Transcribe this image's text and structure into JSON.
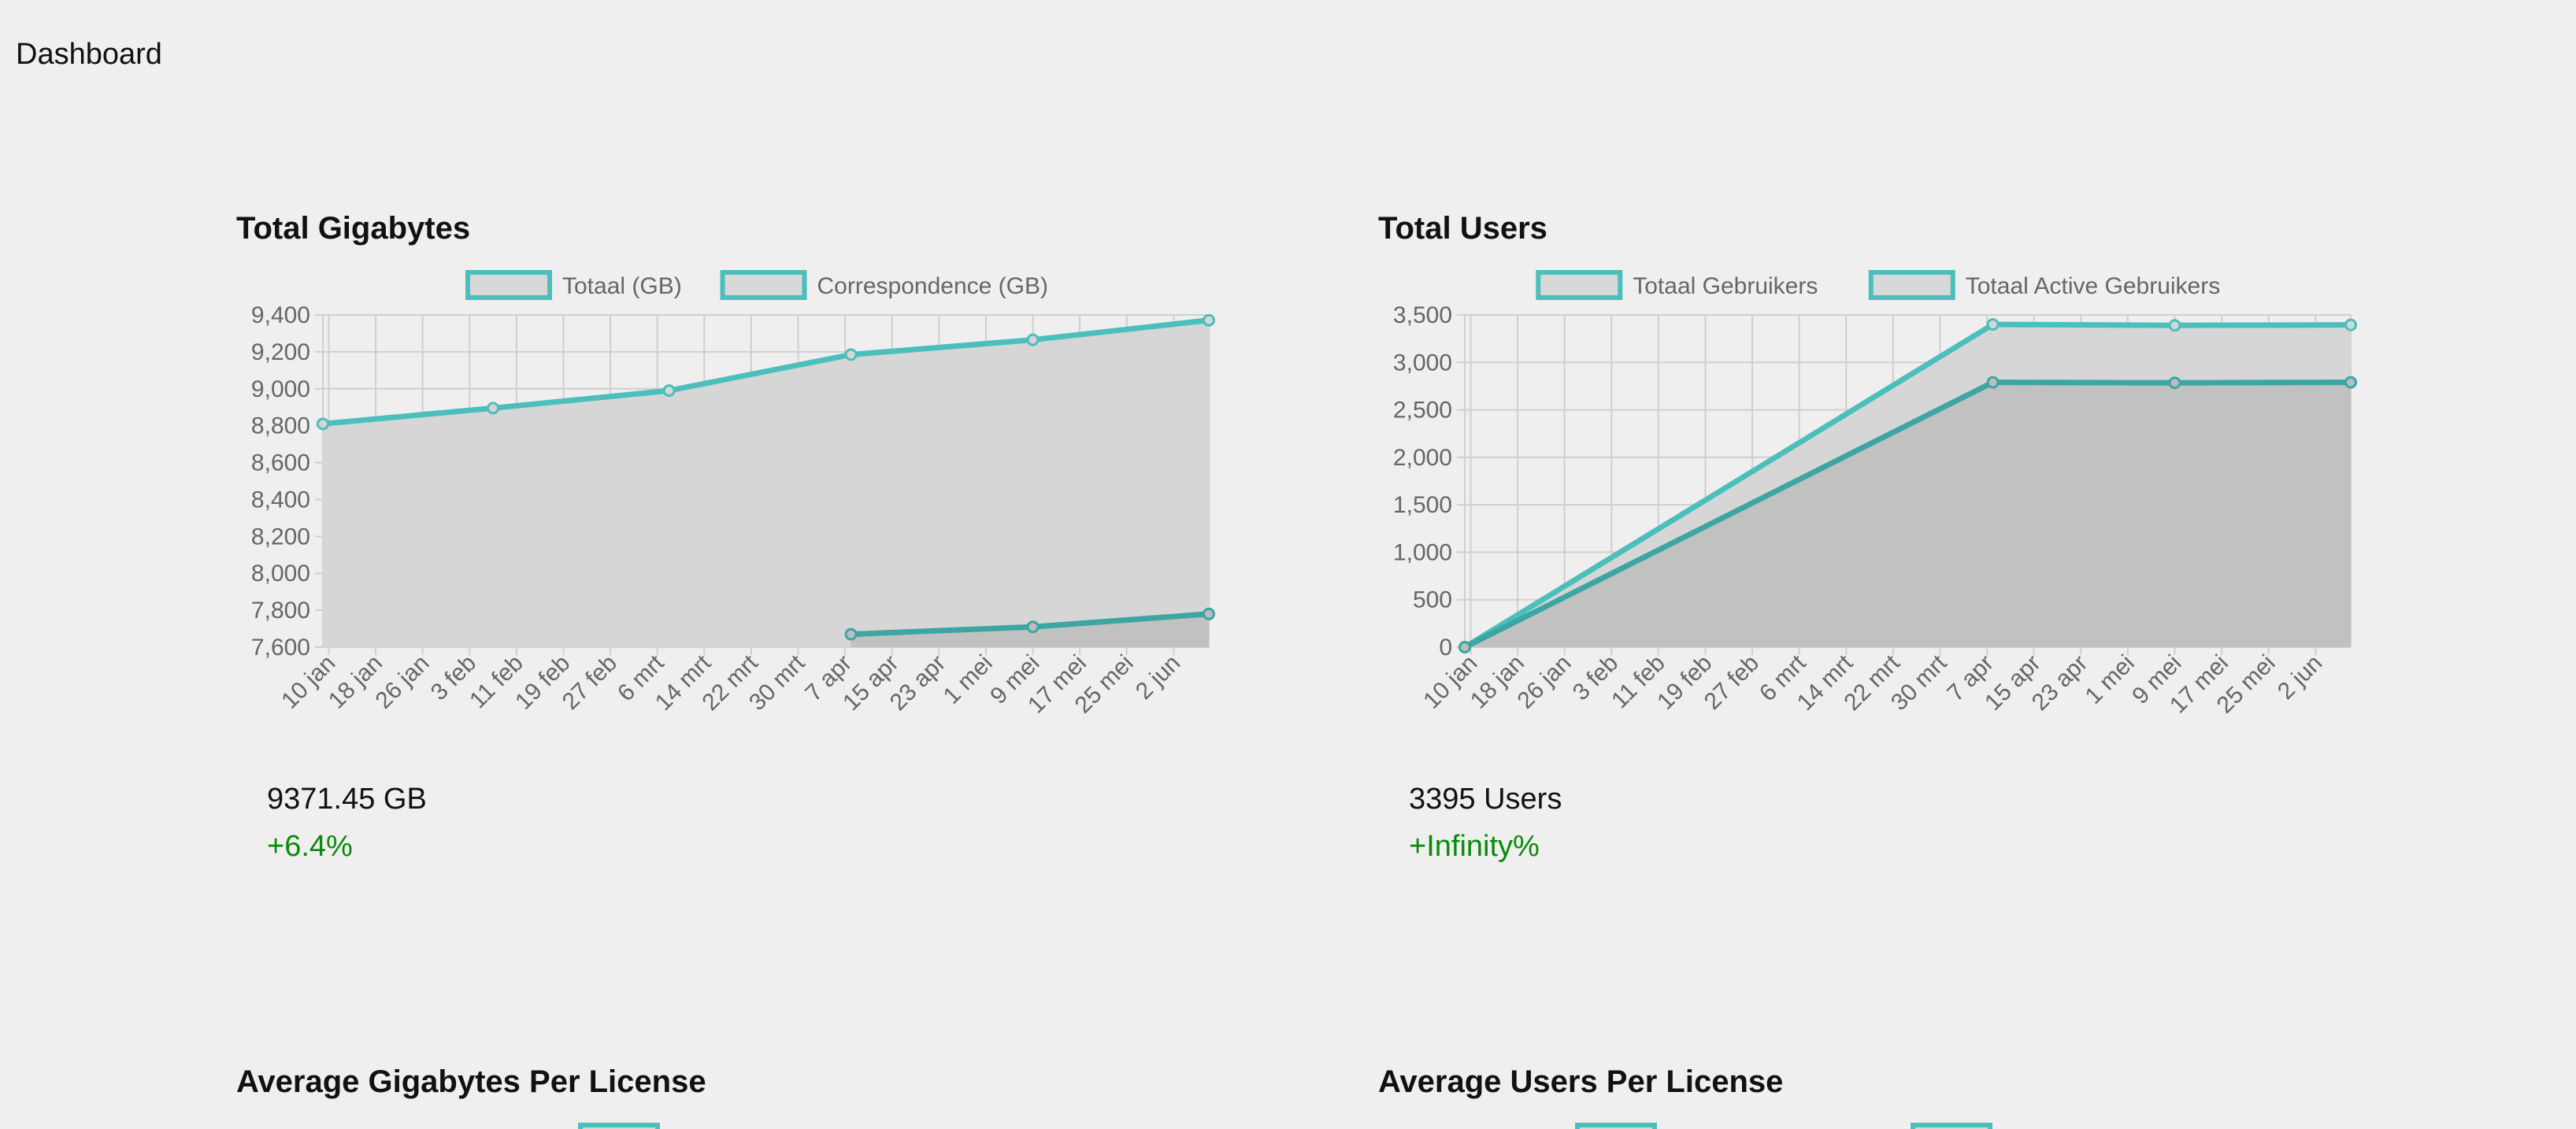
{
  "page": {
    "title": "Dashboard"
  },
  "colors": {
    "line_primary": "#4bbfbb",
    "line_secondary": "#3ba6a2",
    "fill_primary": "#d6d6d6",
    "fill_secondary": "#bdbdbd",
    "legend_box_fill": "#d8d8d8",
    "grid": "#cfcfcf",
    "positive": "#0a8a0a"
  },
  "panels": {
    "gigabytes": {
      "title": "Total Gigabytes",
      "stat_value": "9371.45 GB",
      "stat_change": "+6.4%"
    },
    "users": {
      "title": "Total Users",
      "stat_value": "3395 Users",
      "stat_change": "+Infinity%"
    },
    "avg_gigabytes": {
      "title": "Average Gigabytes Per License"
    },
    "avg_users": {
      "title": "Average Users Per License"
    }
  },
  "chart_data": [
    {
      "type": "area",
      "title": "Total Gigabytes",
      "x_ticks": [
        "10 jan",
        "18 jan",
        "26 jan",
        "3 feb",
        "11 feb",
        "19 feb",
        "27 feb",
        "6 mrt",
        "14 mrt",
        "22 mrt",
        "30 mrt",
        "7 apr",
        "15 apr",
        "23 apr",
        "1 mei",
        "9 mei",
        "17 mei",
        "25 mei",
        "2 jun"
      ],
      "x_range": [
        "2024-01-09",
        "2024-06-08"
      ],
      "y_ticks": [
        7600,
        7800,
        8000,
        8200,
        8400,
        8600,
        8800,
        9000,
        9200,
        9400
      ],
      "y_tick_labels": [
        "7,600",
        "7,800",
        "8,000",
        "8,200",
        "8,400",
        "8,600",
        "8,800",
        "9,000",
        "9,200",
        "9,400"
      ],
      "ylim": [
        7600,
        9400
      ],
      "grid": true,
      "legend": "top",
      "series": [
        {
          "name": "Totaal (GB)",
          "points": [
            {
              "x": "2024-01-09",
              "y": 8810
            },
            {
              "x": "2024-02-07",
              "y": 8895
            },
            {
              "x": "2024-03-08",
              "y": 8990
            },
            {
              "x": "2024-04-08",
              "y": 9185
            },
            {
              "x": "2024-05-09",
              "y": 9265
            },
            {
              "x": "2024-06-08",
              "y": 9371.45
            }
          ]
        },
        {
          "name": "Correspondence (GB)",
          "points": [
            {
              "x": "2024-04-08",
              "y": 7670
            },
            {
              "x": "2024-05-09",
              "y": 7710
            },
            {
              "x": "2024-06-08",
              "y": 7780
            }
          ]
        }
      ]
    },
    {
      "type": "area",
      "title": "Total Users",
      "x_ticks": [
        "10 jan",
        "18 jan",
        "26 jan",
        "3 feb",
        "11 feb",
        "19 feb",
        "27 feb",
        "6 mrt",
        "14 mrt",
        "22 mrt",
        "30 mrt",
        "7 apr",
        "15 apr",
        "23 apr",
        "1 mei",
        "9 mei",
        "17 mei",
        "25 mei",
        "2 jun"
      ],
      "x_range": [
        "2024-01-09",
        "2024-06-08"
      ],
      "y_ticks": [
        0,
        500,
        1000,
        1500,
        2000,
        2500,
        3000,
        3500
      ],
      "y_tick_labels": [
        "0",
        "500",
        "1,000",
        "1,500",
        "2,000",
        "2,500",
        "3,000",
        "3,500"
      ],
      "ylim": [
        0,
        3500
      ],
      "grid": true,
      "legend": "top",
      "series": [
        {
          "name": "Totaal Gebruikers",
          "points": [
            {
              "x": "2024-01-09",
              "y": 0
            },
            {
              "x": "2024-04-08",
              "y": 3400
            },
            {
              "x": "2024-05-09",
              "y": 3390
            },
            {
              "x": "2024-06-08",
              "y": 3395
            }
          ]
        },
        {
          "name": "Totaal Active Gebruikers",
          "points": [
            {
              "x": "2024-01-09",
              "y": 0
            },
            {
              "x": "2024-04-08",
              "y": 2790
            },
            {
              "x": "2024-05-09",
              "y": 2785
            },
            {
              "x": "2024-06-08",
              "y": 2790
            }
          ]
        }
      ]
    }
  ]
}
